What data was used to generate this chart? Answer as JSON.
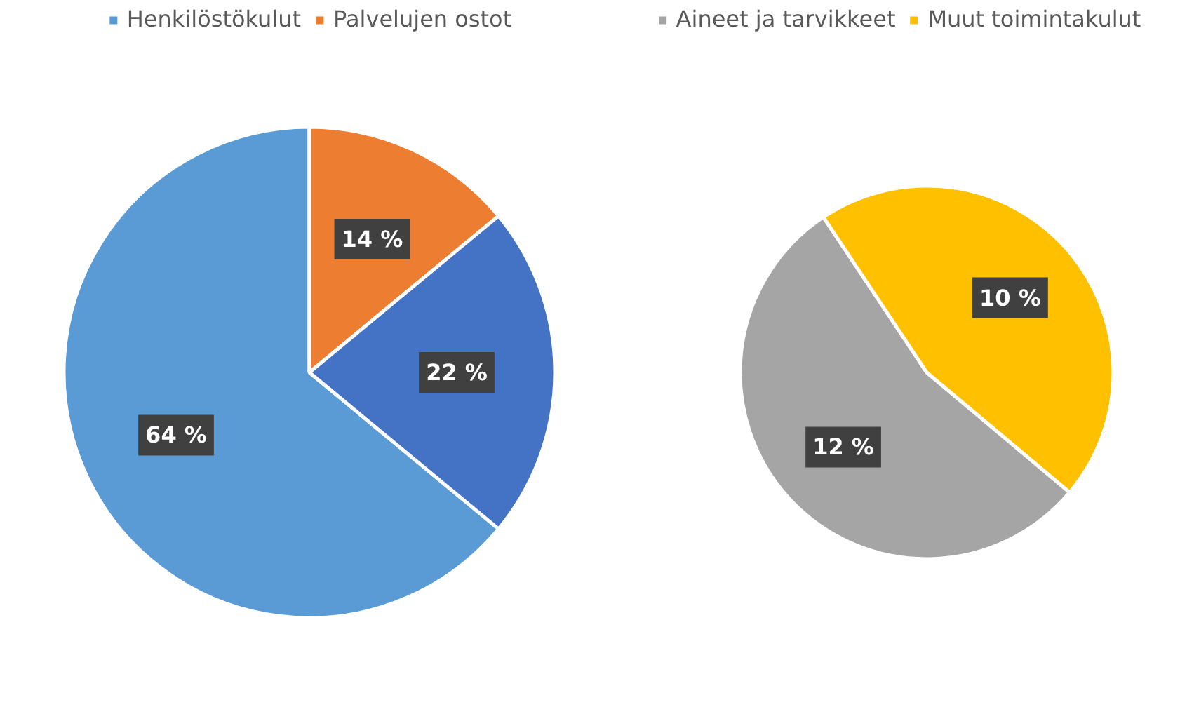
{
  "chart_data": [
    {
      "type": "pie",
      "categories": [
        "Henkilöstökulut",
        "Palvelujen ostot",
        null
      ],
      "values": [
        64,
        14,
        22
      ],
      "colors": [
        "#5b9bd5",
        "#ed7d31",
        "#4472c4"
      ],
      "value_labels": [
        "64 %",
        "14 %",
        "22 %"
      ],
      "legend": "top"
    },
    {
      "type": "pie",
      "categories": [
        "Aineet ja tarvikkeet",
        "Muut toimintakulut"
      ],
      "values": [
        12,
        10
      ],
      "colors": [
        "#a5a5a5",
        "#ffc000"
      ],
      "value_labels": [
        "12 %",
        "10 %"
      ],
      "legend": "top"
    }
  ]
}
